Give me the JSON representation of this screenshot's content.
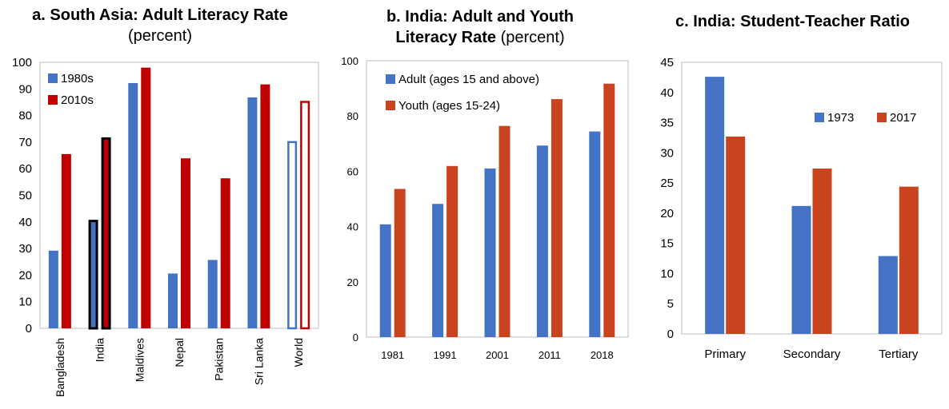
{
  "chart_data": [
    {
      "type": "bar",
      "title": "a. South Asia: Adult Literacy Rate",
      "subtitle": "(percent)",
      "categories": [
        "Bangladesh",
        "India",
        "Maldives",
        "Nepal",
        "Pakistan",
        "Sri Lanka",
        "World"
      ],
      "series": [
        {
          "name": "1980s",
          "values": [
            29.2,
            40.8,
            92.2,
            20.6,
            25.7,
            86.8,
            70.4
          ]
        },
        {
          "name": "2010s",
          "values": [
            65.5,
            71.8,
            98.0,
            63.9,
            56.4,
            91.7,
            85.5
          ]
        }
      ],
      "highlight": {
        "India": "black-outline",
        "World": "hollow"
      },
      "ylim": [
        0,
        100
      ],
      "yticks": [
        0,
        10,
        20,
        30,
        40,
        50,
        60,
        70,
        80,
        90,
        100
      ],
      "legend": "top-left",
      "colors": [
        "#4472c4",
        "#c00000"
      ]
    },
    {
      "type": "bar",
      "title": "b. India: Adult and Youth",
      "title_line2": "Literacy Rate",
      "subtitle": "(percent)",
      "categories": [
        "1981",
        "1991",
        "2001",
        "2011",
        "2018"
      ],
      "series": [
        {
          "name": "Adult (ages 15 and above)",
          "values": [
            40.8,
            48.2,
            61.0,
            69.3,
            74.4
          ]
        },
        {
          "name": "Youth  (ages 15-24)",
          "values": [
            53.6,
            61.9,
            76.4,
            86.1,
            91.7
          ]
        }
      ],
      "ylim": [
        0,
        100
      ],
      "yticks": [
        0,
        20,
        40,
        60,
        80,
        100
      ],
      "legend": "top-left",
      "colors": [
        "#4472c4",
        "#c9431e"
      ]
    },
    {
      "type": "bar",
      "title": "c. India: Student-Teacher Ratio",
      "categories": [
        "Primary",
        "Secondary",
        "Tertiary"
      ],
      "series": [
        {
          "name": "1973",
          "values": [
            42.6,
            21.2,
            12.9
          ]
        },
        {
          "name": "2017",
          "values": [
            32.7,
            27.4,
            24.4
          ]
        }
      ],
      "ylim": [
        0,
        45
      ],
      "yticks": [
        0,
        5,
        10,
        15,
        20,
        25,
        30,
        35,
        40,
        45
      ],
      "legend": "top-right",
      "colors": [
        "#4472c4",
        "#c9431e"
      ]
    }
  ]
}
